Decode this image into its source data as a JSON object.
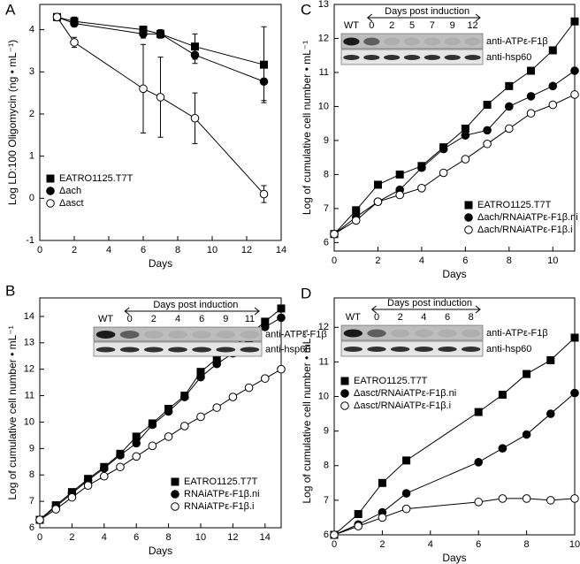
{
  "chart_data": [
    {
      "type": "line",
      "panel": "A",
      "xlabel": "Days",
      "ylabel": "Log LD:100 Oligomycin (ng • mL⁻¹)",
      "xlim": [
        0,
        14
      ],
      "xticks": [
        0,
        2,
        4,
        6,
        8,
        10,
        12,
        14
      ],
      "ylim": [
        -1,
        4.6
      ],
      "yticks": [
        -1,
        0,
        1,
        2,
        3,
        4
      ],
      "legend": "lower left",
      "series": [
        {
          "name": "EATRO1125.T7T",
          "marker": "square",
          "color": "#000000",
          "x": [
            1,
            2,
            6,
            7,
            9,
            13
          ],
          "values": [
            4.3,
            4.2,
            4.0,
            3.9,
            3.6,
            3.17
          ],
          "errors": [
            0.05,
            0.1,
            0.08,
            0.1,
            0.3,
            0.9
          ]
        },
        {
          "name": "Δach",
          "marker": "circle",
          "color": "#000000",
          "x": [
            1,
            2,
            6,
            7,
            9,
            13
          ],
          "values": [
            4.3,
            4.15,
            3.9,
            3.9,
            3.4,
            2.77
          ],
          "errors": [
            0.05,
            0.08,
            0.1,
            0.1,
            0.2,
            0.45
          ]
        },
        {
          "name": "Δasct",
          "marker": "circle",
          "color": "#ffffff",
          "x": [
            1,
            2,
            6,
            7,
            9,
            13
          ],
          "values": [
            4.3,
            3.7,
            2.6,
            2.4,
            1.9,
            0.1
          ],
          "errors": [
            0.05,
            0.12,
            1.05,
            0.95,
            0.6,
            0.2
          ]
        }
      ]
    },
    {
      "type": "line",
      "panel": "B",
      "xlabel": "Days",
      "ylabel": "Log of cumulative cell number • mL⁻¹",
      "xlim": [
        0,
        15
      ],
      "xticks": [
        0,
        2,
        4,
        6,
        8,
        10,
        12,
        14
      ],
      "ylim": [
        6,
        14.7
      ],
      "yticks": [
        6,
        7,
        8,
        9,
        10,
        11,
        12,
        13,
        14
      ],
      "legend": "lower right",
      "inset": {
        "title": "Days post induction",
        "lanes": [
          "WT",
          "0",
          "2",
          "4",
          "6",
          "9",
          "11"
        ],
        "bands": [
          "anti-ATPε-F1β",
          "anti-hsp60"
        ]
      },
      "series": [
        {
          "name": "EATRO1125.T7T",
          "marker": "square",
          "color": "#000000",
          "x": [
            0,
            1,
            2,
            3,
            4,
            5,
            6,
            7,
            8,
            9,
            10,
            11,
            12,
            13,
            14,
            15
          ],
          "values": [
            6.3,
            6.85,
            7.35,
            7.85,
            8.3,
            8.8,
            9.45,
            9.95,
            10.5,
            11.0,
            11.9,
            12.4,
            12.85,
            13.3,
            13.8,
            14.3
          ]
        },
        {
          "name": "RNAiATPε-F1β.ni",
          "marker": "circle",
          "color": "#000000",
          "x": [
            0,
            1,
            2,
            3,
            4,
            5,
            6,
            7,
            8,
            9,
            10,
            11,
            12,
            13,
            14,
            15
          ],
          "values": [
            6.3,
            6.8,
            7.3,
            7.8,
            8.25,
            8.75,
            9.2,
            9.9,
            10.4,
            10.95,
            11.7,
            12.2,
            12.6,
            13.1,
            13.6,
            13.95
          ]
        },
        {
          "name": "RNAiATPε-F1β.i",
          "marker": "circle",
          "color": "#ffffff",
          "x": [
            0,
            1,
            2,
            3,
            4,
            5,
            6,
            7,
            8,
            9,
            10,
            11,
            12,
            13,
            14,
            15
          ],
          "values": [
            6.3,
            6.7,
            7.15,
            7.6,
            7.95,
            8.3,
            8.7,
            9.1,
            9.45,
            9.85,
            10.2,
            10.55,
            10.95,
            11.3,
            11.65,
            12.0
          ]
        }
      ]
    },
    {
      "type": "line",
      "panel": "C",
      "xlabel": "Days",
      "ylabel": "Log of cumulative cell number • mL⁻¹",
      "xlim": [
        0,
        11
      ],
      "xticks": [
        0,
        2,
        4,
        6,
        8,
        10
      ],
      "ylim": [
        5.75,
        13
      ],
      "yticks": [
        6,
        7,
        8,
        9,
        10,
        11,
        12,
        13
      ],
      "legend": "lower right",
      "inset": {
        "title": "Days post induction",
        "lanes": [
          "WT",
          "0",
          "2",
          "5",
          "7",
          "9",
          "12"
        ],
        "bands": [
          "anti-ATPε-F1β",
          "anti-hsp60"
        ]
      },
      "series": [
        {
          "name": "EATRO1125.T7T",
          "marker": "square",
          "color": "#000000",
          "x": [
            0,
            1,
            2,
            3,
            4,
            5,
            6,
            7,
            8,
            9,
            10,
            11
          ],
          "values": [
            6.25,
            6.95,
            7.7,
            8.0,
            8.25,
            8.8,
            9.35,
            10.05,
            10.6,
            11.05,
            11.65,
            12.5
          ]
        },
        {
          "name": "Δach/RNAiATPε-F1β.ni",
          "marker": "circle",
          "color": "#000000",
          "x": [
            0,
            1,
            2,
            3,
            4,
            5,
            6,
            7,
            8,
            9,
            10,
            11
          ],
          "values": [
            6.25,
            6.75,
            7.2,
            7.55,
            8.2,
            8.75,
            9.15,
            9.3,
            10.0,
            10.3,
            10.6,
            11.05
          ]
        },
        {
          "name": "Δach/RNAiATPε-F1β.i",
          "marker": "circle",
          "color": "#ffffff",
          "x": [
            0,
            1,
            2,
            3,
            4,
            5,
            6,
            7,
            8,
            9,
            10,
            11
          ],
          "values": [
            6.25,
            6.65,
            7.2,
            7.4,
            7.6,
            8.05,
            8.45,
            8.9,
            9.35,
            9.8,
            10.05,
            10.35
          ]
        }
      ]
    },
    {
      "type": "line",
      "panel": "D",
      "xlabel": "Days",
      "ylabel": "Log of cumulative cell number • mL⁻¹",
      "xlim": [
        0,
        10
      ],
      "xticks": [
        0,
        2,
        4,
        6,
        8,
        10
      ],
      "ylim": [
        6,
        12.85
      ],
      "yticks": [
        6,
        7,
        8,
        9,
        10,
        11,
        12
      ],
      "legend": "upper left",
      "inset": {
        "title": "Days post induction",
        "lanes": [
          "WT",
          "0",
          "2",
          "4",
          "6",
          "8"
        ],
        "bands": [
          "anti-ATPε-F1β",
          "anti-hsp60"
        ]
      },
      "series": [
        {
          "name": "EATRO1125.T7T",
          "marker": "square",
          "color": "#000000",
          "x": [
            0,
            1,
            2,
            3,
            6,
            7,
            8,
            9,
            10
          ],
          "values": [
            6.0,
            6.6,
            7.5,
            8.15,
            9.55,
            10.05,
            10.65,
            11.05,
            11.7
          ]
        },
        {
          "name": "Δasct/RNAiATPε-F1β.ni",
          "marker": "circle",
          "color": "#000000",
          "x": [
            0,
            1,
            2,
            3,
            6,
            7,
            8,
            9,
            10
          ],
          "values": [
            6.0,
            6.3,
            6.65,
            7.2,
            8.1,
            8.5,
            8.9,
            9.5,
            10.1
          ]
        },
        {
          "name": "Δasct/RNAiATPε-F1β.i",
          "marker": "circle",
          "color": "#ffffff",
          "x": [
            0,
            1,
            2,
            3,
            6,
            7,
            8,
            9,
            10
          ],
          "values": [
            6.0,
            6.25,
            6.5,
            6.75,
            6.95,
            7.05,
            7.05,
            7.0,
            7.05
          ]
        }
      ]
    }
  ]
}
